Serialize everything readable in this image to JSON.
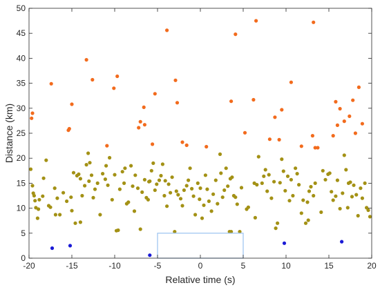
{
  "chart_data": {
    "type": "scatter",
    "title": "",
    "xlabel": "Relative time (s)",
    "ylabel": "Distance (km)",
    "xlim": [
      -20,
      20
    ],
    "ylim": [
      0,
      50
    ],
    "xticks": [
      "-20",
      "-15",
      "-10",
      "-5",
      "0",
      "5",
      "10",
      "15",
      "20"
    ],
    "yticks": [
      "0",
      "5",
      "10",
      "15",
      "20",
      "25",
      "30",
      "35",
      "40",
      "45",
      "50"
    ],
    "grid": false,
    "legend": "none",
    "highlight_window": {
      "x": [
        -5,
        5
      ],
      "y": [
        0,
        5
      ],
      "color": "#99c2f0"
    },
    "series": [
      {
        "color": "#f26b1d",
        "points": [
          [
            -19.7,
            28.0
          ],
          [
            -19.6,
            29.0
          ],
          [
            -17.4,
            34.9
          ],
          [
            -15.4,
            25.6
          ],
          [
            -15.3,
            25.9
          ],
          [
            -15.0,
            30.8
          ],
          [
            -13.3,
            39.7
          ],
          [
            -12.6,
            35.7
          ],
          [
            -10.9,
            22.5
          ],
          [
            -10.1,
            34.0
          ],
          [
            -9.7,
            36.4
          ],
          [
            -7.2,
            26.1
          ],
          [
            -7.0,
            27.3
          ],
          [
            -6.6,
            30.2
          ],
          [
            -6.5,
            26.7
          ],
          [
            -5.6,
            22.8
          ],
          [
            -5.3,
            32.9
          ],
          [
            -3.9,
            45.6
          ],
          [
            -2.9,
            35.6
          ],
          [
            -2.7,
            31.1
          ],
          [
            -2.1,
            23.2
          ],
          [
            -1.6,
            22.6
          ],
          [
            0.7,
            22.3
          ],
          [
            3.6,
            31.4
          ],
          [
            4.1,
            44.8
          ],
          [
            5.2,
            25.1
          ],
          [
            6.2,
            31.7
          ],
          [
            6.5,
            47.5
          ],
          [
            8.1,
            23.8
          ],
          [
            8.7,
            28.2
          ],
          [
            9.2,
            23.7
          ],
          [
            9.5,
            29.7
          ],
          [
            10.6,
            35.2
          ],
          [
            11.8,
            22.4
          ],
          [
            13.1,
            24.5
          ],
          [
            13.2,
            47.2
          ],
          [
            13.4,
            22.1
          ],
          [
            13.7,
            22.1
          ],
          [
            15.5,
            24.5
          ],
          [
            15.8,
            31.3
          ],
          [
            16.0,
            26.6
          ],
          [
            16.3,
            29.9
          ],
          [
            16.8,
            27.4
          ],
          [
            17.4,
            28.4
          ],
          [
            17.8,
            31.6
          ],
          [
            18.1,
            25.0
          ],
          [
            18.5,
            34.2
          ],
          [
            18.9,
            26.9
          ]
        ]
      },
      {
        "color": "#a39115",
        "points": [
          [
            -19.8,
            17.8
          ],
          [
            -19.6,
            14.5
          ],
          [
            -19.5,
            13.0
          ],
          [
            -19.3,
            11.5
          ],
          [
            -19.2,
            10.1
          ],
          [
            -19.0,
            8.0
          ],
          [
            -18.8,
            11.7
          ],
          [
            -18.4,
            12.4
          ],
          [
            -18.3,
            16.0
          ],
          [
            -18.0,
            19.6
          ],
          [
            -17.7,
            10.5
          ],
          [
            -17.5,
            10.2
          ],
          [
            -17.0,
            14.0
          ],
          [
            -16.7,
            12.0
          ],
          [
            -16.4,
            8.7
          ],
          [
            -16.0,
            13.1
          ],
          [
            -15.6,
            11.4
          ],
          [
            -15.1,
            12.2
          ],
          [
            -15.0,
            9.5
          ],
          [
            -14.8,
            17.1
          ],
          [
            -14.4,
            16.5
          ],
          [
            -14.2,
            16.8
          ],
          [
            -14.0,
            15.9
          ],
          [
            -13.8,
            12.5
          ],
          [
            -13.5,
            14.5
          ],
          [
            -13.3,
            18.7
          ],
          [
            -13.1,
            21.0
          ],
          [
            -12.9,
            19.1
          ],
          [
            -12.7,
            16.6
          ],
          [
            -12.5,
            12.1
          ],
          [
            -12.3,
            13.8
          ],
          [
            -12.0,
            15.0
          ],
          [
            -11.7,
            8.7
          ],
          [
            -11.4,
            16.9
          ],
          [
            -11.0,
            18.5
          ],
          [
            -10.8,
            14.6
          ],
          [
            -10.6,
            20.1
          ],
          [
            -10.3,
            11.7
          ],
          [
            -10.0,
            16.7
          ],
          [
            -9.8,
            5.5
          ],
          [
            -9.6,
            5.6
          ],
          [
            -9.4,
            13.8
          ],
          [
            -9.1,
            17.3
          ],
          [
            -8.9,
            15.0
          ],
          [
            -8.6,
            10.9
          ],
          [
            -8.4,
            11.2
          ],
          [
            -8.1,
            18.5
          ],
          [
            -7.9,
            14.4
          ],
          [
            -7.6,
            16.6
          ],
          [
            -7.3,
            14.0
          ],
          [
            -7.0,
            5.8
          ],
          [
            -6.8,
            13.2
          ],
          [
            -6.5,
            15.7
          ],
          [
            -6.3,
            12.1
          ],
          [
            -6.1,
            11.7
          ],
          [
            -5.9,
            15.4
          ],
          [
            -5.7,
            17.5
          ],
          [
            -5.5,
            19.0
          ],
          [
            -5.3,
            13.6
          ],
          [
            -5.1,
            14.8
          ],
          [
            -4.8,
            15.6
          ],
          [
            -4.6,
            16.5
          ],
          [
            -4.4,
            18.8
          ],
          [
            -4.2,
            12.5
          ],
          [
            -3.9,
            10.4
          ],
          [
            -3.7,
            14.8
          ],
          [
            -3.5,
            13.1
          ],
          [
            -3.3,
            16.2
          ],
          [
            -3.0,
            5.3
          ],
          [
            -2.8,
            13.4
          ],
          [
            -2.6,
            12.7
          ],
          [
            -2.3,
            11.9
          ],
          [
            -2.1,
            10.5
          ],
          [
            -1.9,
            13.6
          ],
          [
            -1.6,
            14.5
          ],
          [
            -1.4,
            15.6
          ],
          [
            -1.2,
            18.0
          ],
          [
            -1.0,
            13.9
          ],
          [
            -0.8,
            12.4
          ],
          [
            -0.6,
            8.7
          ],
          [
            -0.3,
            15.0
          ],
          [
            -0.1,
            11.8
          ],
          [
            0.2,
            8.0
          ],
          [
            0.4,
            10.6
          ],
          [
            0.6,
            16.6
          ],
          [
            0.8,
            13.8
          ],
          [
            1.0,
            11.4
          ],
          [
            1.3,
            9.4
          ],
          [
            1.5,
            12.8
          ],
          [
            1.8,
            15.6
          ],
          [
            2.0,
            10.9
          ],
          [
            2.3,
            20.8
          ],
          [
            2.6,
            12.2
          ],
          [
            2.8,
            13.6
          ],
          [
            3.0,
            18.0
          ],
          [
            3.2,
            14.4
          ],
          [
            3.5,
            15.9
          ],
          [
            3.7,
            16.2
          ],
          [
            3.9,
            12.5
          ],
          [
            4.1,
            12.2
          ],
          [
            4.3,
            10.8
          ],
          [
            4.6,
            5.3
          ],
          [
            3.4,
            5.3
          ],
          [
            3.6,
            5.3
          ],
          [
            4.8,
            14.1
          ],
          [
            5.4,
            9.8
          ],
          [
            5.6,
            10.2
          ],
          [
            6.3,
            15.0
          ],
          [
            6.4,
            8.1
          ],
          [
            6.6,
            14.7
          ],
          [
            6.8,
            20.3
          ],
          [
            7.2,
            15.0
          ],
          [
            7.4,
            16.4
          ],
          [
            7.6,
            17.7
          ],
          [
            7.8,
            13.4
          ],
          [
            8.0,
            16.7
          ],
          [
            8.3,
            12.0
          ],
          [
            8.6,
            15.3
          ],
          [
            8.8,
            6.0
          ],
          [
            9.0,
            7.0
          ],
          [
            9.3,
            15.1
          ],
          [
            9.5,
            19.8
          ],
          [
            9.7,
            17.4
          ],
          [
            9.9,
            13.5
          ],
          [
            10.2,
            16.4
          ],
          [
            10.4,
            11.5
          ],
          [
            10.6,
            15.7
          ],
          [
            10.8,
            12.5
          ],
          [
            11.1,
            18.0
          ],
          [
            11.3,
            16.9
          ],
          [
            11.5,
            14.7
          ],
          [
            11.8,
            9.0
          ],
          [
            12.0,
            11.6
          ],
          [
            12.3,
            7.0
          ],
          [
            12.5,
            11.2
          ],
          [
            12.7,
            13.4
          ],
          [
            12.9,
            14.3
          ],
          [
            13.2,
            12.5
          ],
          [
            13.4,
            15.0
          ],
          [
            14.1,
            9.2
          ],
          [
            14.3,
            17.5
          ],
          [
            14.6,
            15.7
          ],
          [
            14.9,
            16.8
          ],
          [
            15.1,
            17.0
          ],
          [
            15.3,
            13.3
          ],
          [
            15.5,
            11.6
          ],
          [
            15.8,
            12.4
          ],
          [
            16.0,
            15.6
          ],
          [
            16.3,
            9.9
          ],
          [
            16.6,
            13.0
          ],
          [
            16.8,
            20.6
          ],
          [
            17.0,
            17.7
          ],
          [
            17.2,
            10.1
          ],
          [
            17.5,
            15.2
          ],
          [
            17.7,
            12.3
          ],
          [
            17.9,
            14.6
          ],
          [
            18.2,
            12.7
          ],
          [
            18.4,
            8.5
          ],
          [
            18.7,
            14.0
          ],
          [
            18.9,
            12.0
          ],
          [
            19.2,
            15.0
          ],
          [
            19.4,
            10.1
          ],
          [
            19.6,
            9.6
          ],
          [
            19.8,
            8.3
          ],
          [
            -19.4,
            12.5
          ],
          [
            -18.9,
            9.8
          ],
          [
            -16.9,
            8.7
          ],
          [
            -14.6,
            7.0
          ],
          [
            -14.0,
            7.2
          ],
          [
            -11.1,
            15.8
          ],
          [
            -8.8,
            18.0
          ],
          [
            -6.0,
            15.3
          ],
          [
            -4.1,
            15.5
          ],
          [
            2.4,
            17.0
          ],
          [
            12.6,
            7.6
          ],
          [
            17.3,
            15.0
          ],
          [
            -13.0,
            15.4
          ],
          [
            -7.7,
            9.4
          ],
          [
            0.0,
            14.0
          ]
        ]
      },
      {
        "color": "#1a1ad6",
        "points": [
          [
            -17.3,
            2.0
          ],
          [
            -15.2,
            2.5
          ],
          [
            -5.9,
            0.6
          ],
          [
            9.8,
            3.0
          ],
          [
            16.5,
            3.3
          ]
        ]
      }
    ]
  }
}
